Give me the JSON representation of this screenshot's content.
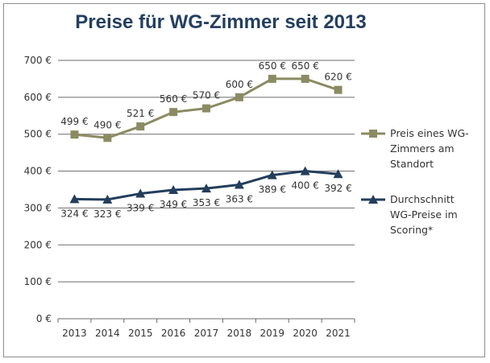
{
  "chart_data": {
    "type": "line",
    "title": "Preise für WG-Zimmer seit 2013",
    "xlabel": "",
    "ylabel": "",
    "categories": [
      "2013",
      "2014",
      "2015",
      "2016",
      "2017",
      "2018",
      "2019",
      "2020",
      "2021"
    ],
    "ylim": [
      0,
      700
    ],
    "yticks": [
      0,
      100,
      200,
      300,
      400,
      500,
      600,
      700
    ],
    "ytick_labels": [
      "0 €",
      "100 €",
      "200 €",
      "300 €",
      "400 €",
      "500 €",
      "600 €",
      "700 €"
    ],
    "grid": "horizontal",
    "legend_position": "right",
    "series": [
      {
        "name": "Preis eines WG-Zimmers am Standort",
        "legend_lines": [
          "Preis eines WG-",
          "Zimmers am",
          "Standort"
        ],
        "values": [
          499,
          490,
          521,
          560,
          570,
          600,
          650,
          650,
          620
        ],
        "labels": [
          "499 €",
          "490 €",
          "521 €",
          "560 €",
          "570 €",
          "600 €",
          "650 €",
          "650 €",
          "620 €"
        ],
        "label_position": "above",
        "color": "#8b8b63",
        "marker": "square"
      },
      {
        "name": "Durchschnitt WG-Preise im Scoring*",
        "legend_lines": [
          "Durchschnitt",
          "WG-Preise im",
          "Scoring*"
        ],
        "values": [
          324,
          323,
          339,
          349,
          353,
          363,
          389,
          400,
          392
        ],
        "labels": [
          "324 €",
          "323 €",
          "339 €",
          "349 €",
          "353 €",
          "363 €",
          "389 €",
          "400 €",
          "392 €"
        ],
        "label_position": "below",
        "color": "#233e5c",
        "marker": "triangle"
      }
    ]
  }
}
